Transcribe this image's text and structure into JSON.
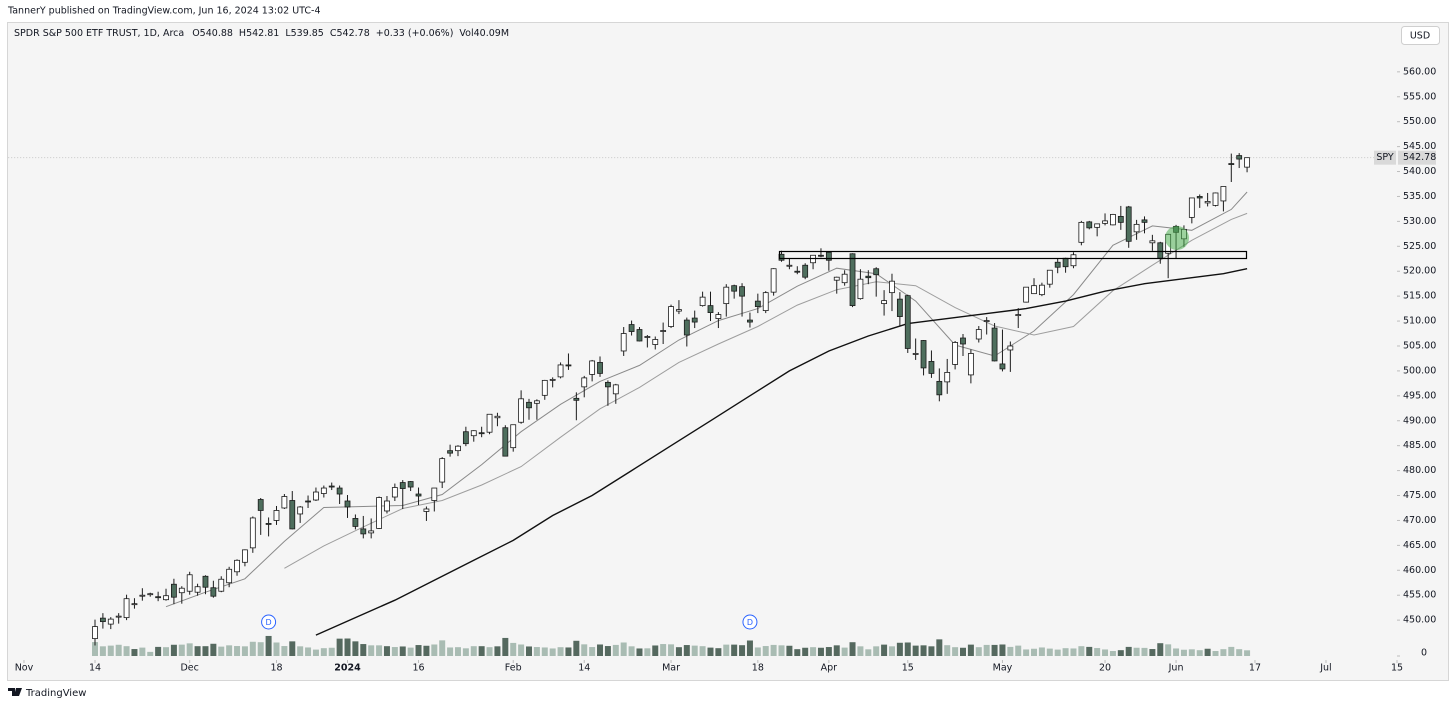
{
  "header": {
    "published": "TannerY published on TradingView.com, Jun 16, 2024 13:02 UTC-4"
  },
  "chart_data": {
    "type": "candlestick",
    "legend": {
      "symbol": "SPDR S&P 500 ETF TRUST, 1D, Arca",
      "open": "O540.88",
      "high": "H542.81",
      "low": "L539.85",
      "close": "C542.78",
      "change": "+0.33 (+0.06%)",
      "volume": "Vol40.09M"
    },
    "currency": "USD",
    "ticker": "SPY",
    "last_price": 542.78,
    "open": [
      446.3,
      450.4,
      449.2,
      450.7,
      450.5,
      453.2,
      454.9,
      455.1,
      454.7,
      454.1,
      457.2,
      455.5,
      455.8,
      455.6,
      458.8,
      456.5,
      455.8,
      457.5,
      459.7,
      461.6,
      464.5,
      474.2,
      469.4,
      470.0,
      472.5,
      474.0,
      471.3,
      473.9,
      474.1,
      475.4,
      476.9,
      476.5,
      473.9,
      470.4,
      468.3,
      467.5,
      468.4,
      471.9,
      474.7,
      477.6,
      477.8,
      475.3,
      471.8,
      474.0,
      477.7,
      484.0,
      484.0,
      487.8,
      487.0,
      487.6,
      487.7,
      490.6,
      488.6,
      484.6,
      489.7,
      493.7,
      493.5,
      495.1,
      498.1,
      498.8,
      501.2,
      494.5,
      496.8,
      499.3,
      501.7,
      497.7,
      495.4,
      504.0,
      509.3,
      508.3,
      506.7,
      505.3,
      508.1,
      508.9,
      512.0,
      510.2,
      510.6,
      513.1,
      513.1,
      510.5,
      513.5,
      517.1,
      516.9,
      510.2,
      514.0,
      512.1,
      515.8,
      523.4,
      521.0,
      520.0,
      521.2,
      521.7,
      523.2,
      523.8,
      518.2,
      517.7,
      523.5,
      514.5,
      519.0,
      520.5,
      513.5,
      515.7,
      514.4,
      515.1,
      503.5,
      506.1,
      501.9,
      497.9,
      497.8,
      501.3,
      506.6,
      499.2,
      506.4,
      510.1,
      508.6,
      501.4,
      504.2,
      511.2,
      513.8,
      515.5,
      515.3,
      517.4,
      521.8,
      522.6,
      521.1,
      525.8,
      529.9,
      528.8,
      529.6,
      529.3,
      531.0,
      532.9,
      527.9,
      530.3,
      525.7,
      525.7,
      523.6,
      529.0,
      526.5,
      530.8,
      535.0,
      533.7,
      533.2,
      534.1,
      541.6,
      543.2,
      540.88
    ],
    "high": [
      450.1,
      451.4,
      450.6,
      451.4,
      455.1,
      454.4,
      456.4,
      455.5,
      455.7,
      456.3,
      458.3,
      456.8,
      459.7,
      457.3,
      459.0,
      457.9,
      458.8,
      460.7,
      462.2,
      464.2,
      470.8,
      474.5,
      470.6,
      472.9,
      475.3,
      475.9,
      472.9,
      475.0,
      476.6,
      477.0,
      477.6,
      477.0,
      475.1,
      471.2,
      470.9,
      470.4,
      474.8,
      474.9,
      477.4,
      478.1,
      477.9,
      476.6,
      472.8,
      476.5,
      482.7,
      485.2,
      485.1,
      488.8,
      488.1,
      488.8,
      491.3,
      491.6,
      489.1,
      489.2,
      496.1,
      494.4,
      494.3,
      498.2,
      498.7,
      501.7,
      503.5,
      495.7,
      499.0,
      502.2,
      502.9,
      498.1,
      497.4,
      508.8,
      510.1,
      508.8,
      507.2,
      506.9,
      509.7,
      513.3,
      514.2,
      510.7,
      512.1,
      515.9,
      515.9,
      511.8,
      517.4,
      517.3,
      517.6,
      511.7,
      515.5,
      516.0,
      520.6,
      524.1,
      522.6,
      521.0,
      521.6,
      523.2,
      524.6,
      524.0,
      518.9,
      520.2,
      523.6,
      520.4,
      520.2,
      520.8,
      516.2,
      519.5,
      515.8,
      515.3,
      506.5,
      506.2,
      504.1,
      500.5,
      502.4,
      506.0,
      507.4,
      504.3,
      509.0,
      510.8,
      509.6,
      508.3,
      505.9,
      512.6,
      516.8,
      518.6,
      517.7,
      520.2,
      522.6,
      522.7,
      523.8,
      530.1,
      530.1,
      529.5,
      531.6,
      531.5,
      533.1,
      533.1,
      530.3,
      531.0,
      527.3,
      525.9,
      527.5,
      529.3,
      529.2,
      534.7,
      535.4,
      535.7,
      535.8,
      537.0,
      543.6,
      543.7,
      542.81
    ],
    "low": [
      444.9,
      448.3,
      448.2,
      449.3,
      450.0,
      452.3,
      453.9,
      454.7,
      453.8,
      453.9,
      453.2,
      453.3,
      455.1,
      454.9,
      455.2,
      454.5,
      455.6,
      456.6,
      458.9,
      460.8,
      463.5,
      467.1,
      466.8,
      469.1,
      472.3,
      468.2,
      469.5,
      472.5,
      473.9,
      474.6,
      476.1,
      473.3,
      470.5,
      468.2,
      466.4,
      466.4,
      468.3,
      471.4,
      473.9,
      472.3,
      475.9,
      473.1,
      469.9,
      471.8,
      476.5,
      482.8,
      482.9,
      484.9,
      485.8,
      486.7,
      487.3,
      488.9,
      482.9,
      483.8,
      489.4,
      490.2,
      490.2,
      494.2,
      496.7,
      498.5,
      500.2,
      490.1,
      494.7,
      497.9,
      498.8,
      493.0,
      493.4,
      503.0,
      507.1,
      505.9,
      504.7,
      504.3,
      505.4,
      508.6,
      511.4,
      504.9,
      508.6,
      512.9,
      510.0,
      508.6,
      510.9,
      514.5,
      510.9,
      508.7,
      511.6,
      511.6,
      515.1,
      521.9,
      520.4,
      519.4,
      518.4,
      520.4,
      522.8,
      520.1,
      515.5,
      517.1,
      512.8,
      514.3,
      517.4,
      514.9,
      511.1,
      512.0,
      509.1,
      503.6,
      502.2,
      499.1,
      498.6,
      493.9,
      495.4,
      500.3,
      503.0,
      497.5,
      505.7,
      507.3,
      501.9,
      499.9,
      499.8,
      508.6,
      513.7,
      515.5,
      515.0,
      516.7,
      519.6,
      519.7,
      520.6,
      525.2,
      528.4,
      527.0,
      529.2,
      529.2,
      528.3,
      524.7,
      526.3,
      527.6,
      524.1,
      521.5,
      518.6,
      522.6,
      524.9,
      529.6,
      532.7,
      533.0,
      533.0,
      532.0,
      537.9,
      540.7,
      539.85
    ],
    "close": [
      448.7,
      449.7,
      450.2,
      450.8,
      454.3,
      453.3,
      455.0,
      455.3,
      454.5,
      454.9,
      454.6,
      456.4,
      459.1,
      456.7,
      456.6,
      454.8,
      458.2,
      460.2,
      462.0,
      464.1,
      470.5,
      472.0,
      469.3,
      472.0,
      474.8,
      468.3,
      472.7,
      473.7,
      475.7,
      476.5,
      476.7,
      475.3,
      472.7,
      468.8,
      467.3,
      467.9,
      474.6,
      473.9,
      476.6,
      476.4,
      476.7,
      474.9,
      472.3,
      476.5,
      482.4,
      483.5,
      484.9,
      485.4,
      488.0,
      487.4,
      491.3,
      490.9,
      482.9,
      489.2,
      494.4,
      492.6,
      494.0,
      498.1,
      498.3,
      501.2,
      501.0,
      494.1,
      498.6,
      502.0,
      499.5,
      496.8,
      497.2,
      507.5,
      507.9,
      506.0,
      506.9,
      506.3,
      508.1,
      512.9,
      512.3,
      507.2,
      509.8,
      514.8,
      511.7,
      511.3,
      516.8,
      516.0,
      515.0,
      509.8,
      512.9,
      515.7,
      520.5,
      522.2,
      521.2,
      519.8,
      518.8,
      523.2,
      523.1,
      522.2,
      518.8,
      519.4,
      513.1,
      518.4,
      518.7,
      519.3,
      514.1,
      518.0,
      510.9,
      504.5,
      503.5,
      500.6,
      499.5,
      495.2,
      499.7,
      505.7,
      505.4,
      503.5,
      508.3,
      510.1,
      502.0,
      500.4,
      505.0,
      511.3,
      516.8,
      517.1,
      517.2,
      520.2,
      520.8,
      520.9,
      523.3,
      529.8,
      528.7,
      529.5,
      530.1,
      531.4,
      529.8,
      526.0,
      529.4,
      529.8,
      526.1,
      522.6,
      527.4,
      527.8,
      528.4,
      534.7,
      534.7,
      534.0,
      535.7,
      537.0,
      541.4,
      542.5,
      542.78
    ],
    "volume": [
      98,
      68,
      73,
      79,
      69,
      49,
      59,
      29,
      64,
      62,
      79,
      80,
      89,
      69,
      69,
      86,
      66,
      75,
      70,
      68,
      100,
      97,
      141,
      95,
      70,
      103,
      68,
      60,
      45,
      55,
      58,
      122,
      123,
      103,
      84,
      75,
      75,
      69,
      63,
      67,
      59,
      77,
      72,
      81,
      110,
      60,
      62,
      54,
      69,
      69,
      62,
      68,
      127,
      92,
      81,
      67,
      63,
      60,
      53,
      62,
      60,
      107,
      82,
      63,
      81,
      70,
      78,
      95,
      68,
      53,
      54,
      74,
      84,
      82,
      62,
      77,
      73,
      69,
      59,
      55,
      80,
      80,
      76,
      109,
      60,
      70,
      78,
      75,
      72,
      48,
      58,
      62,
      58,
      63,
      75,
      59,
      97,
      68,
      47,
      68,
      80,
      68,
      93,
      95,
      73,
      75,
      68,
      117,
      76,
      62,
      58,
      80,
      62,
      78,
      78,
      81,
      64,
      73,
      46,
      51,
      60,
      52,
      45,
      55,
      53,
      69,
      64,
      56,
      46,
      35,
      41,
      64,
      58,
      57,
      49,
      90,
      82,
      53,
      44,
      47,
      41,
      51,
      35,
      48,
      64,
      48,
      40
    ],
    "hollow_color": "#ffffff",
    "filled_color": "#4e6e5d",
    "volume_up_color": "#a9bcb3",
    "volume_down_color": "#55695f",
    "moving_averages": [
      {
        "color": "#8a8a8a",
        "x": [
          9,
          14,
          19,
          24,
          29,
          34,
          39,
          44,
          49,
          54,
          59,
          64,
          69,
          74,
          79,
          84,
          89,
          94,
          99,
          104,
          109,
          114,
          119,
          124,
          129,
          134,
          139,
          144,
          146
        ],
        "values": [
          452.7,
          455.6,
          458.3,
          465.8,
          472.6,
          472.8,
          473.0,
          475.2,
          481.2,
          487.8,
          493.3,
          497.9,
          501.1,
          506.2,
          510.1,
          512.5,
          517.0,
          520.6,
          519.5,
          514.0,
          505.2,
          503.0,
          508.0,
          515.3,
          525.2,
          529.1,
          528.2,
          532.4,
          535.9
        ]
      },
      {
        "color": "#9e9e9e",
        "x": [
          24,
          29,
          34,
          39,
          44,
          49,
          54,
          59,
          64,
          69,
          74,
          79,
          84,
          89,
          94,
          99,
          104,
          109,
          114,
          119,
          124,
          129,
          134,
          139,
          144,
          146
        ],
        "values": [
          460.4,
          464.9,
          468.7,
          472.4,
          474.0,
          477.1,
          480.8,
          486.7,
          492.4,
          496.7,
          501.7,
          505.4,
          508.9,
          513.2,
          516.3,
          517.9,
          517.1,
          512.7,
          509.0,
          507.2,
          508.9,
          516.1,
          521.2,
          526.2,
          530.4,
          531.6
        ]
      },
      {
        "color": "#111111",
        "x": [
          28,
          33,
          38,
          43,
          48,
          53,
          58,
          63,
          68,
          73,
          78,
          83,
          88,
          93,
          98,
          103,
          108,
          113,
          118,
          123,
          128,
          133,
          138,
          143,
          146
        ],
        "values": [
          447,
          450.5,
          454,
          458,
          462,
          466,
          471,
          475,
          480,
          485,
          490,
          495,
          500,
          504,
          507,
          509.5,
          510.5,
          511.5,
          512.5,
          514,
          516,
          517.5,
          518.5,
          519.5,
          520.5
        ]
      }
    ],
    "dividends": {
      "x": [
        22,
        83
      ],
      "labels": [
        "D",
        "D"
      ]
    },
    "xlim": [
      -11,
      165
    ],
    "xticks": [
      {
        "value": -9,
        "label": "Nov"
      },
      {
        "value": 0,
        "label": "14"
      },
      {
        "value": 12,
        "label": "Dec"
      },
      {
        "value": 23,
        "label": "18"
      },
      {
        "value": 32,
        "label": "2024"
      },
      {
        "value": 41,
        "label": "16"
      },
      {
        "value": 53,
        "label": "Feb"
      },
      {
        "value": 62,
        "label": "14"
      },
      {
        "value": 73,
        "label": "Mar"
      },
      {
        "value": 84,
        "label": "18"
      },
      {
        "value": 93,
        "label": "Apr"
      },
      {
        "value": 103,
        "label": "15"
      },
      {
        "value": 115,
        "label": "May"
      },
      {
        "value": 128,
        "label": "20"
      },
      {
        "value": 137,
        "label": "Jun"
      },
      {
        "value": 147,
        "label": "17"
      },
      {
        "value": 156,
        "label": "Jul"
      },
      {
        "value": 165,
        "label": "15"
      }
    ],
    "ylim": [
      442,
      570
    ],
    "yticks": [
      {
        "value": 450,
        "label": "450.00"
      },
      {
        "value": 455,
        "label": "455.00"
      },
      {
        "value": 460,
        "label": "460.00"
      },
      {
        "value": 465,
        "label": "465.00"
      },
      {
        "value": 470,
        "label": "470.00"
      },
      {
        "value": 475,
        "label": "475.00"
      },
      {
        "value": 480,
        "label": "480.00"
      },
      {
        "value": 485,
        "label": "485.00"
      },
      {
        "value": 490,
        "label": "490.00"
      },
      {
        "value": 495,
        "label": "495.00"
      },
      {
        "value": 500,
        "label": "500.00"
      },
      {
        "value": 505,
        "label": "505.00"
      },
      {
        "value": 510,
        "label": "510.00"
      },
      {
        "value": 515,
        "label": "515.00"
      },
      {
        "value": 520,
        "label": "520.00"
      },
      {
        "value": 525,
        "label": "525.00"
      },
      {
        "value": 530,
        "label": "530.00"
      },
      {
        "value": 535,
        "label": "535.00"
      },
      {
        "value": 540,
        "label": "540.00"
      },
      {
        "value": 545,
        "label": "545.00"
      },
      {
        "value": 550,
        "label": "550.00"
      },
      {
        "value": 555,
        "label": "555.00"
      },
      {
        "value": 560,
        "label": "560.00"
      }
    ],
    "vol_ylim": [
      0,
      450
    ],
    "vol_yticks": [
      0
    ]
  },
  "footer": {
    "brand": "TradingView"
  }
}
